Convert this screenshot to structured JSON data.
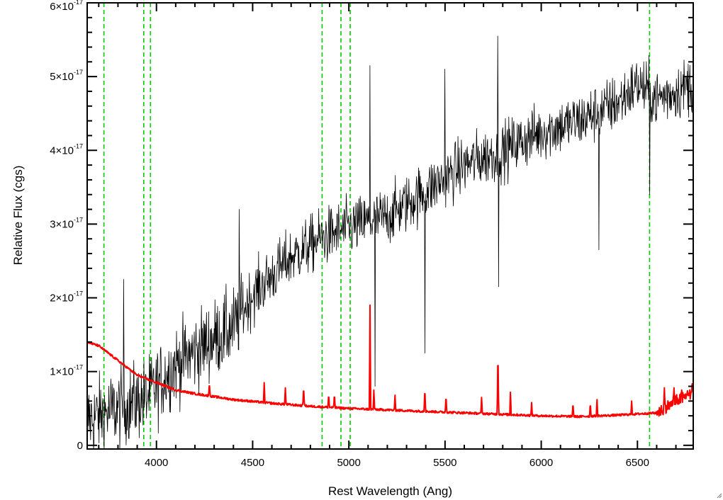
{
  "chart_data": {
    "type": "line",
    "title": "",
    "xlabel": "Rest Wavelength (Ang)",
    "ylabel": "Relative Flux (cgs)",
    "xlim": [
      3640,
      6790
    ],
    "ylim": [
      -5e-19,
      6e-17
    ],
    "x_ticks": [
      {
        "value": 4000,
        "label": "4000"
      },
      {
        "value": 4500,
        "label": "4500"
      },
      {
        "value": 5000,
        "label": "5000"
      },
      {
        "value": 5500,
        "label": "5500"
      },
      {
        "value": 6000,
        "label": "6000"
      },
      {
        "value": 6500,
        "label": "6500"
      }
    ],
    "y_ticks": [
      {
        "value": 0,
        "mantissa": "0",
        "exponent": ""
      },
      {
        "value": 1e-17,
        "mantissa": "1×10",
        "exponent": "-17"
      },
      {
        "value": 2e-17,
        "mantissa": "2×10",
        "exponent": "-17"
      },
      {
        "value": 3e-17,
        "mantissa": "3×10",
        "exponent": "-17"
      },
      {
        "value": 4e-17,
        "mantissa": "4×10",
        "exponent": "-17"
      },
      {
        "value": 5e-17,
        "mantissa": "5×10",
        "exponent": "-17"
      },
      {
        "value": 6e-17,
        "mantissa": "6×10",
        "exponent": "-17"
      }
    ],
    "line_markers": {
      "color": "#00cc00",
      "style": "dashed",
      "x": [
        3727,
        3934,
        3969,
        4861,
        4959,
        5007,
        6563
      ]
    },
    "series": [
      {
        "color": "#000000",
        "noise_sigma": 2.8e-18,
        "continuum": [
          [
            3640,
            3.5e-18
          ],
          [
            3800,
            5e-18
          ],
          [
            3950,
            6.5e-18
          ],
          [
            4100,
            1.1e-17
          ],
          [
            4300,
            1.45e-17
          ],
          [
            4400,
            1.6e-17
          ],
          [
            4500,
            2.05e-17
          ],
          [
            4700,
            2.55e-17
          ],
          [
            4850,
            2.8e-17
          ],
          [
            5000,
            2.95e-17
          ],
          [
            5200,
            3.1e-17
          ],
          [
            5400,
            3.45e-17
          ],
          [
            5600,
            3.8e-17
          ],
          [
            5800,
            4e-17
          ],
          [
            6000,
            4.25e-17
          ],
          [
            6200,
            4.4e-17
          ],
          [
            6400,
            4.65e-17
          ],
          [
            6500,
            4.9e-17
          ],
          [
            6600,
            4.7e-17
          ],
          [
            6790,
            4.9e-17
          ]
        ],
        "features": [
          [
            5110,
            5.15e-17
          ],
          [
            5135,
            8e-18
          ],
          [
            5395,
            1.25e-17
          ],
          [
            5500,
            5.1e-17
          ],
          [
            5775,
            5.55e-17
          ],
          [
            5778,
            2.15e-17
          ],
          [
            6300,
            2.65e-17
          ],
          [
            6563,
            3.4e-17
          ],
          [
            3830,
            2.25e-17
          ],
          [
            4430,
            3.2e-17
          ]
        ]
      },
      {
        "color": "#ff0000",
        "continuum": [
          [
            3640,
            1.4e-17
          ],
          [
            3700,
            1.35e-17
          ],
          [
            3750,
            1.25e-17
          ],
          [
            3800,
            1.15e-17
          ],
          [
            3900,
            9.5e-18
          ],
          [
            4000,
            8.5e-18
          ],
          [
            4100,
            7.5e-18
          ],
          [
            4200,
            7e-18
          ],
          [
            4400,
            6.2e-18
          ],
          [
            4600,
            5.7e-18
          ],
          [
            4800,
            5.3e-18
          ],
          [
            5000,
            5e-18
          ],
          [
            5200,
            4.8e-18
          ],
          [
            5400,
            4.6e-18
          ],
          [
            5600,
            4.4e-18
          ],
          [
            5800,
            4.2e-18
          ],
          [
            6000,
            4e-18
          ],
          [
            6200,
            3.9e-18
          ],
          [
            6400,
            4.1e-18
          ],
          [
            6600,
            4.4e-18
          ],
          [
            6700,
            6e-18
          ],
          [
            6790,
            7e-18
          ]
        ],
        "lines": [
          [
            4275,
            8.5e-18
          ],
          [
            4560,
            8.5e-18
          ],
          [
            4670,
            7.8e-18
          ],
          [
            4765,
            8e-18
          ],
          [
            4895,
            7e-18
          ],
          [
            4925,
            7e-18
          ],
          [
            5110,
            1.9e-17
          ],
          [
            5130,
            7.5e-18
          ],
          [
            5240,
            6.8e-18
          ],
          [
            5395,
            7.8e-18
          ],
          [
            5505,
            6.8e-18
          ],
          [
            5690,
            6.5e-18
          ],
          [
            5775,
            1.3e-17
          ],
          [
            5840,
            7.2e-18
          ],
          [
            5950,
            5.8e-18
          ],
          [
            6165,
            5.8e-18
          ],
          [
            6255,
            5.8e-18
          ],
          [
            6290,
            6.2e-18
          ],
          [
            6470,
            6e-18
          ],
          [
            6640,
            7.8e-18
          ],
          [
            6690,
            7.8e-18
          ],
          [
            6730,
            7.5e-18
          ],
          [
            6760,
            7.4e-18
          ],
          [
            6785,
            8.8e-18
          ]
        ]
      }
    ]
  }
}
